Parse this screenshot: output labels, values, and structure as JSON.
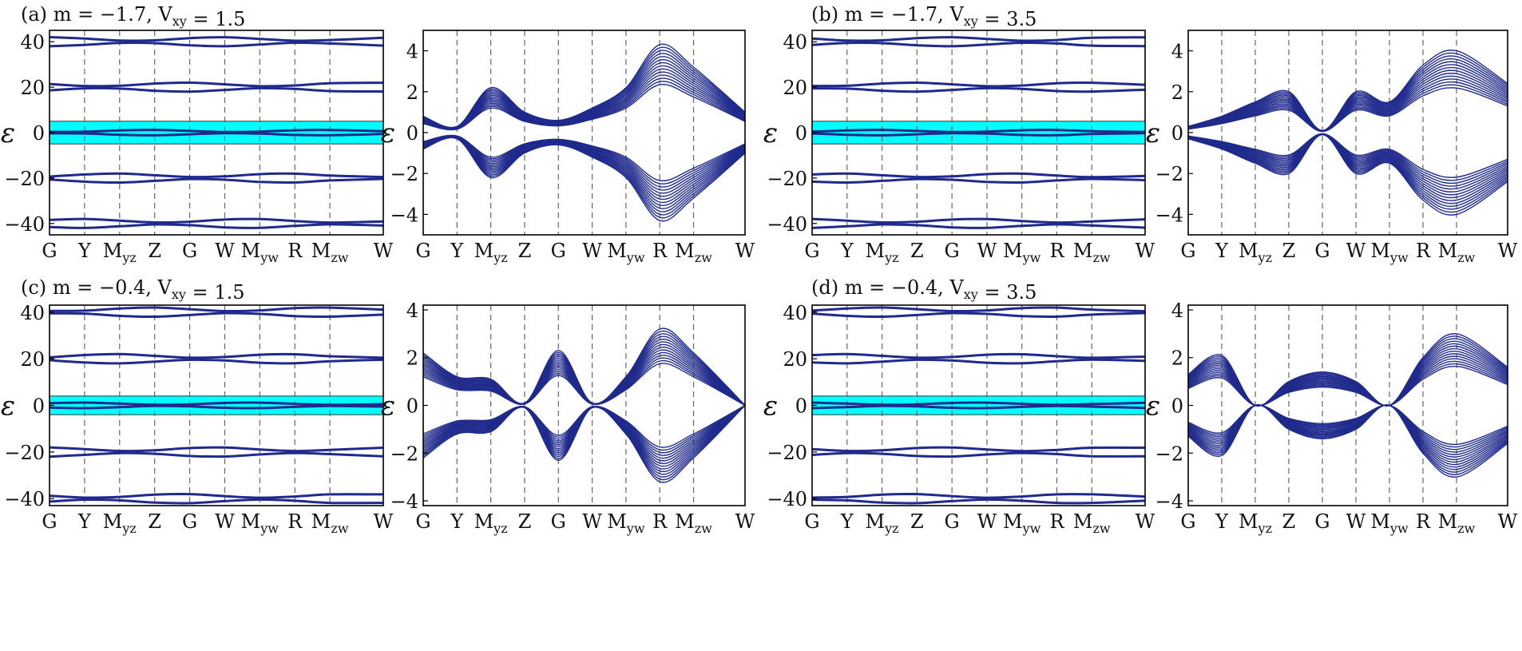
{
  "colors": {
    "bands": "#1f2a8c",
    "highlight": "#00ffff",
    "frame": "#000000",
    "divider": "#666666"
  },
  "ylabel": "ε",
  "kpath": [
    "G",
    "Y",
    "M_yz",
    "Z",
    "G",
    "W",
    "M_yw",
    "R",
    "M_zw",
    "W"
  ],
  "chart_data": [
    {
      "type": "line",
      "panel": "a",
      "title": "(a) m = −1.7, V_xy = 1.5",
      "wide": {
        "ylim": [
          -45,
          45
        ],
        "yticks": [
          40,
          20,
          0,
          -20,
          -40
        ],
        "highlight": [
          -5,
          5
        ],
        "band_centers": [
          40,
          20,
          0,
          -20,
          -40
        ]
      },
      "zoom": {
        "ylim": [
          -5,
          5
        ],
        "yticks": [
          4,
          2,
          0,
          -2,
          -4
        ],
        "upper_band_edge": [
          {
            "k": "G",
            "e": 0.8
          },
          {
            "k": "Y",
            "e": 0.3
          },
          {
            "k": "M_yz",
            "e": 2.2
          },
          {
            "k": "Z",
            "e": 1.0
          },
          {
            "k": "G",
            "e": 0.6
          },
          {
            "k": "W",
            "e": 1.2
          },
          {
            "k": "M_yw",
            "e": 2.2
          },
          {
            "k": "R",
            "e": 4.3
          },
          {
            "k": "M_zw",
            "e": 3.2
          },
          {
            "k": "W",
            "e": 1.0
          }
        ]
      }
    },
    {
      "type": "line",
      "panel": "b",
      "title": "(b) m = −1.7, V_xy = 3.5",
      "wide": {
        "ylim": [
          -45,
          45
        ],
        "yticks": [
          40,
          20,
          0,
          -20,
          -40
        ],
        "highlight": [
          -5,
          5
        ],
        "band_centers": [
          40,
          20,
          0,
          -20,
          -40
        ]
      },
      "zoom": {
        "ylim": [
          -5,
          5
        ],
        "yticks": [
          4,
          2,
          0,
          -2,
          -4
        ],
        "upper_band_edge": [
          {
            "k": "G",
            "e": 0.3
          },
          {
            "k": "Y",
            "e": 0.8
          },
          {
            "k": "M_yz",
            "e": 1.5
          },
          {
            "k": "Z",
            "e": 2.0
          },
          {
            "k": "G",
            "e": 0.1
          },
          {
            "k": "W",
            "e": 2.0
          },
          {
            "k": "M_yw",
            "e": 1.5
          },
          {
            "k": "R",
            "e": 3.3
          },
          {
            "k": "M_zw",
            "e": 4.0
          },
          {
            "k": "W",
            "e": 2.4
          }
        ]
      }
    },
    {
      "type": "line",
      "panel": "c",
      "title": "(c) m = −0.4, V_xy = 1.5",
      "wide": {
        "ylim": [
          -43,
          43
        ],
        "yticks": [
          40,
          20,
          0,
          -20,
          -40
        ],
        "highlight": [
          -4,
          4
        ],
        "band_centers": [
          40,
          20,
          0,
          -20,
          -40
        ]
      },
      "zoom": {
        "ylim": [
          -4.2,
          4.2
        ],
        "yticks": [
          4,
          2,
          0,
          -2,
          -4
        ],
        "upper_band_edge": [
          {
            "k": "G",
            "e": 2.2
          },
          {
            "k": "Y",
            "e": 1.2
          },
          {
            "k": "M_yz",
            "e": 1.1
          },
          {
            "k": "Z",
            "e": 0.1
          },
          {
            "k": "G",
            "e": 2.3
          },
          {
            "k": "W",
            "e": 0.1
          },
          {
            "k": "M_yw",
            "e": 1.2
          },
          {
            "k": "R",
            "e": 3.2
          },
          {
            "k": "M_zw",
            "e": 2.2
          },
          {
            "k": "W",
            "e": 0.0
          }
        ]
      }
    },
    {
      "type": "line",
      "panel": "d",
      "title": "(d) m = −0.4, V_xy = 3.5",
      "wide": {
        "ylim": [
          -43,
          43
        ],
        "yticks": [
          40,
          20,
          0,
          -20,
          -40
        ],
        "highlight": [
          -4,
          4
        ],
        "band_centers": [
          40,
          20,
          0,
          -20,
          -40
        ]
      },
      "zoom": {
        "ylim": [
          -4.2,
          4.2
        ],
        "yticks": [
          4,
          2,
          0,
          -2,
          -4
        ],
        "upper_band_edge": [
          {
            "k": "G",
            "e": 1.3
          },
          {
            "k": "Y",
            "e": 2.1
          },
          {
            "k": "M_yz",
            "e": 0.0
          },
          {
            "k": "Z",
            "e": 1.0
          },
          {
            "k": "G",
            "e": 1.4
          },
          {
            "k": "W",
            "e": 1.0
          },
          {
            "k": "M_yw",
            "e": 0.0
          },
          {
            "k": "R",
            "e": 2.0
          },
          {
            "k": "M_zw",
            "e": 3.0
          },
          {
            "k": "W",
            "e": 1.6
          }
        ]
      }
    }
  ]
}
